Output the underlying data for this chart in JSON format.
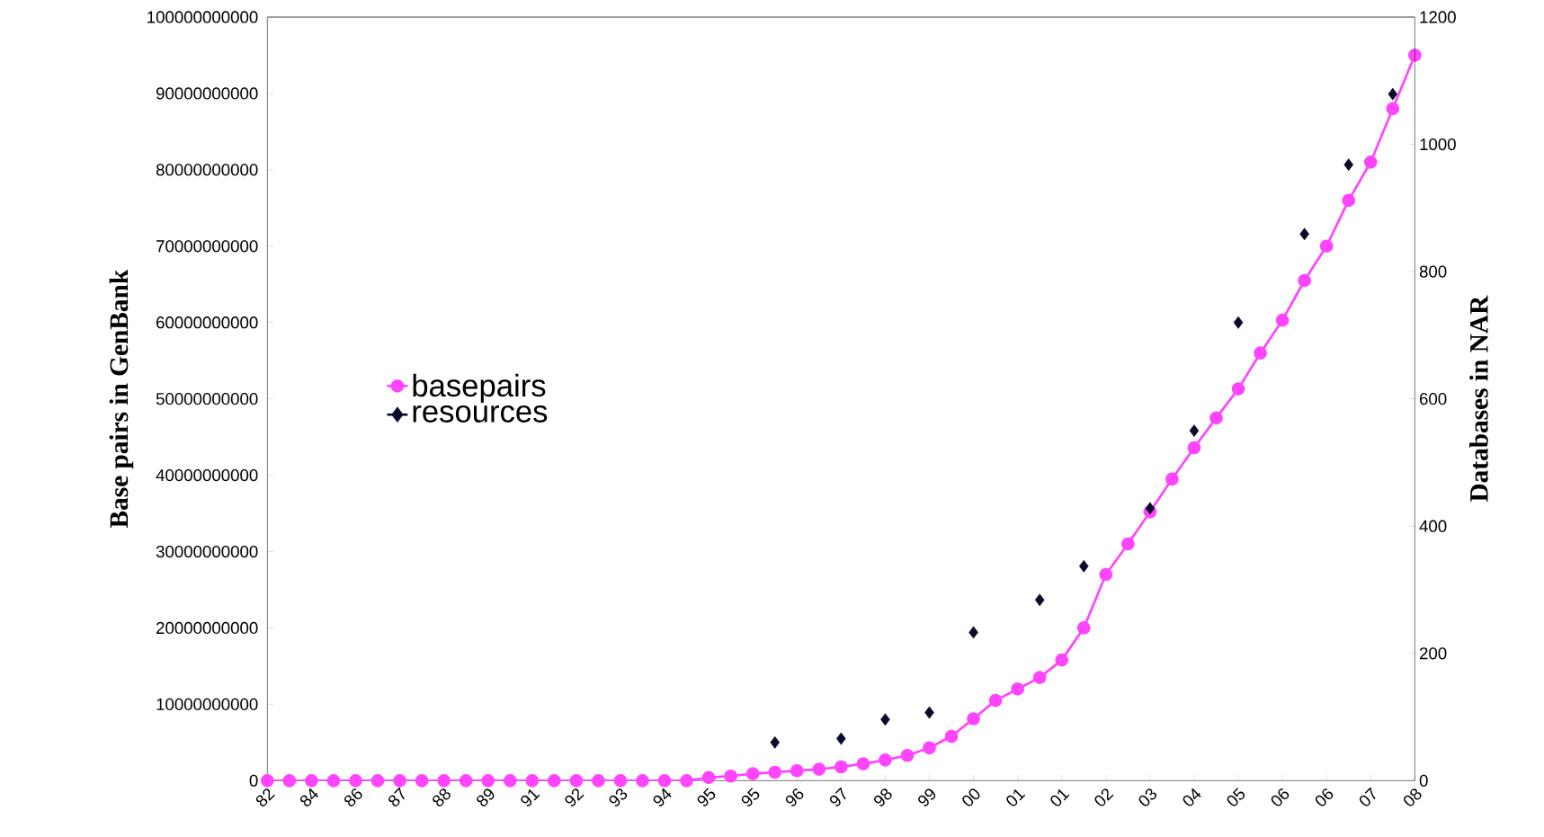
{
  "chart_data": {
    "type": "line",
    "ylabel": "Base pairs in GenBank",
    "y2label": "Databases in NAR",
    "categories": [
      "82",
      null,
      "84",
      null,
      "86",
      null,
      "87",
      null,
      "88",
      null,
      "89",
      null,
      "91",
      null,
      "92",
      null,
      "93",
      null,
      "94",
      null,
      "95",
      null,
      "95",
      null,
      "96",
      null,
      "97",
      null,
      "98",
      null,
      "99",
      null,
      "00",
      null,
      "01",
      null,
      "01",
      null,
      "02",
      null,
      "03",
      null,
      "04",
      null,
      "05",
      null,
      "06",
      null,
      "06",
      null,
      "07",
      null,
      "08"
    ],
    "series": [
      {
        "name": "basepairs",
        "color": "#ff44ff",
        "marker": "circle",
        "values": [
          0,
          0,
          0,
          0,
          0,
          0,
          0,
          0,
          0,
          0,
          0,
          0,
          0,
          0,
          0,
          0,
          0,
          0,
          0,
          0,
          400000000,
          600000000,
          900000000,
          1100000000,
          1300000000,
          1500000000,
          1800000000,
          2200000000,
          2700000000,
          3300000000,
          4300000000,
          5800000000,
          8100000000,
          10500000000,
          12000000000,
          13500000000,
          15800000000,
          20000000000,
          27000000000,
          31000000000,
          35200000000,
          39500000000,
          43600000000,
          47500000000,
          51300000000,
          56000000000,
          60300000000,
          65500000000,
          70000000000,
          76000000000,
          81000000000,
          88000000000,
          95000000000
        ]
      },
      {
        "name": "resources",
        "type": "scatter",
        "axis": "y2",
        "color": "#0a0a2a",
        "marker": "diamond",
        "values": [
          null,
          null,
          null,
          null,
          null,
          null,
          null,
          null,
          null,
          null,
          null,
          null,
          null,
          null,
          null,
          null,
          null,
          null,
          null,
          null,
          null,
          null,
          null,
          60,
          null,
          null,
          66,
          null,
          96,
          null,
          107,
          null,
          233,
          null,
          null,
          284,
          null,
          337,
          null,
          null,
          428,
          null,
          550,
          null,
          720,
          null,
          null,
          859,
          null,
          968,
          null,
          1079,
          null
        ]
      }
    ],
    "ylim": [
      0,
      100000000000
    ],
    "yticks": [
      0,
      10000000000,
      20000000000,
      30000000000,
      40000000000,
      50000000000,
      60000000000,
      70000000000,
      80000000000,
      90000000000,
      100000000000
    ],
    "y2lim": [
      0,
      1200
    ],
    "y2ticks": [
      0,
      200,
      400,
      600,
      800,
      1000,
      1200
    ],
    "legend": "left"
  }
}
